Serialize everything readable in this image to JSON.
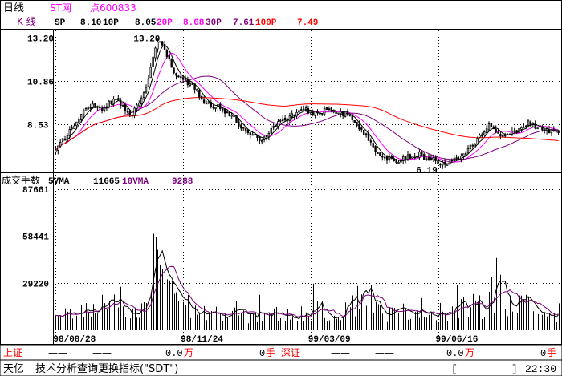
{
  "header": {
    "period_label": "日线",
    "name": "ST网",
    "code": "点600833"
  },
  "kline_legend": {
    "label": "K  线",
    "items": [
      {
        "label": "SP",
        "value": "8.10",
        "color": "#000000"
      },
      {
        "label": "10P",
        "value": "8.05",
        "color": "#000000"
      },
      {
        "label": "20P",
        "value": "8.08",
        "color": "#ff00ff"
      },
      {
        "label": "30P",
        "value": "7.61",
        "color": "#800080"
      },
      {
        "label": "100P",
        "value": "7.49",
        "color": "#ff0000"
      }
    ]
  },
  "volume_legend": {
    "label": "成交手数",
    "items": [
      {
        "label": "5VMA",
        "value": "11665",
        "color": "#000000"
      },
      {
        "label": "10VMA",
        "value": "9288",
        "color": "#800080"
      }
    ]
  },
  "status_bar": {
    "sh_label": "上证",
    "sh_index": "——",
    "sh_change": "——",
    "sh_volume": "0.0",
    "sh_volume_unit": "万",
    "sh_hands": "0",
    "sh_hands_unit": "手",
    "sz_label": "深证",
    "sz_index": "——",
    "sz_change": "——",
    "sz_volume": "0.0",
    "sz_volume_unit": "万",
    "sz_hands": "0",
    "sz_hands_unit": "手"
  },
  "command_bar": {
    "app_name": "天亿",
    "message": "技术分析查询更换指标(\"SDT\")",
    "bracket_open": "[",
    "bracket_close": "]",
    "clock": "22:30"
  },
  "colors": {
    "background": "#ffffff",
    "frame": "#000000",
    "grid": "#000000",
    "label_red": "#ff0000",
    "label_magenta": "#ff00ff",
    "label_purple": "#800080"
  },
  "chart_data": [
    {
      "type": "candlestick",
      "ylim": [
        6.0,
        13.6
      ],
      "y_ticks": [
        "13.20",
        "10.86",
        "8.53"
      ],
      "y_tick_values": [
        13.2,
        10.86,
        8.53
      ],
      "annotations": [
        {
          "text": "13.20",
          "bar": 44,
          "value": 13.2
        },
        {
          "text": "6.19",
          "bar": 166,
          "value": 6.19
        }
      ],
      "x_labels": [
        {
          "text": "98/08/28",
          "bar": 0
        },
        {
          "text": "98/11/24",
          "bar": 55
        },
        {
          "text": "99/03/09",
          "bar": 110
        },
        {
          "text": "99/06/16",
          "bar": 165
        }
      ],
      "close_keypoints": [
        [
          0,
          7.1
        ],
        [
          6,
          8.2
        ],
        [
          10,
          8.8
        ],
        [
          14,
          9.6
        ],
        [
          20,
          9.4
        ],
        [
          26,
          9.9
        ],
        [
          30,
          9.4
        ],
        [
          33,
          9.1
        ],
        [
          36,
          9.6
        ],
        [
          39,
          10.5
        ],
        [
          42,
          12.2
        ],
        [
          44,
          13.0
        ],
        [
          47,
          12.6
        ],
        [
          51,
          11.3
        ],
        [
          56,
          10.9
        ],
        [
          61,
          10.3
        ],
        [
          65,
          9.7
        ],
        [
          70,
          9.5
        ],
        [
          75,
          9.1
        ],
        [
          78,
          8.7
        ],
        [
          81,
          8.3
        ],
        [
          85,
          8.0
        ],
        [
          89,
          7.7
        ],
        [
          93,
          8.3
        ],
        [
          98,
          8.8
        ],
        [
          103,
          9.1
        ],
        [
          108,
          9.3
        ],
        [
          113,
          9.1
        ],
        [
          118,
          9.4
        ],
        [
          123,
          9.2
        ],
        [
          127,
          9.0
        ],
        [
          131,
          8.4
        ],
        [
          135,
          7.7
        ],
        [
          139,
          7.0
        ],
        [
          143,
          6.7
        ],
        [
          147,
          6.6
        ],
        [
          152,
          6.8
        ],
        [
          157,
          6.9
        ],
        [
          162,
          6.7
        ],
        [
          166,
          6.4
        ],
        [
          170,
          6.6
        ],
        [
          175,
          6.9
        ],
        [
          180,
          7.5
        ],
        [
          184,
          8.0
        ],
        [
          187,
          8.5
        ],
        [
          190,
          8.2
        ],
        [
          193,
          7.8
        ],
        [
          196,
          8.1
        ],
        [
          200,
          8.3
        ],
        [
          204,
          8.6
        ],
        [
          209,
          8.4
        ],
        [
          213,
          8.2
        ],
        [
          217,
          8.1
        ]
      ],
      "moving_averages": [
        {
          "name": "5P",
          "period": 5,
          "color": "#000000"
        },
        {
          "name": "10P",
          "period": 10,
          "color": "#ff00ff"
        },
        {
          "name": "30P",
          "period": 30,
          "color": "#800080"
        },
        {
          "name": "100P",
          "period": 100,
          "color": "#ff0000"
        }
      ]
    },
    {
      "type": "bar",
      "ylim": [
        0,
        87661
      ],
      "y_ticks": [
        "87661",
        "58441",
        "29220"
      ],
      "y_tick_values": [
        87661,
        58441,
        29220
      ],
      "volume_keypoints": [
        [
          0,
          6500
        ],
        [
          6,
          11000
        ],
        [
          12,
          13000
        ],
        [
          18,
          10000
        ],
        [
          24,
          16000
        ],
        [
          30,
          9000
        ],
        [
          36,
          10000
        ],
        [
          40,
          22000
        ],
        [
          43,
          46000
        ],
        [
          46,
          42000
        ],
        [
          50,
          28000
        ],
        [
          55,
          17000
        ],
        [
          60,
          12000
        ],
        [
          66,
          10000
        ],
        [
          72,
          9000
        ],
        [
          78,
          11000
        ],
        [
          84,
          8500
        ],
        [
          90,
          9000
        ],
        [
          96,
          10000
        ],
        [
          102,
          9000
        ],
        [
          108,
          10500
        ],
        [
          114,
          12000
        ],
        [
          120,
          10000
        ],
        [
          126,
          15000
        ],
        [
          132,
          21000
        ],
        [
          136,
          14000
        ],
        [
          142,
          9500
        ],
        [
          148,
          11000
        ],
        [
          154,
          15000
        ],
        [
          160,
          12500
        ],
        [
          166,
          9500
        ],
        [
          172,
          12000
        ],
        [
          178,
          15000
        ],
        [
          184,
          14000
        ],
        [
          190,
          26000
        ],
        [
          196,
          18000
        ],
        [
          202,
          14000
        ],
        [
          208,
          12000
        ],
        [
          213,
          10500
        ],
        [
          217,
          11000
        ]
      ],
      "spikes": [
        [
          20,
          22000
        ],
        [
          28,
          27000
        ],
        [
          42,
          60000
        ],
        [
          43,
          58000
        ],
        [
          44,
          50000
        ],
        [
          46,
          38000
        ],
        [
          78,
          18000
        ],
        [
          88,
          22000
        ],
        [
          111,
          29000
        ],
        [
          126,
          32000
        ],
        [
          133,
          45000
        ],
        [
          136,
          28000
        ],
        [
          166,
          17000
        ],
        [
          173,
          28000
        ],
        [
          188,
          33000
        ],
        [
          190,
          45000
        ],
        [
          193,
          30000
        ],
        [
          203,
          22000
        ]
      ],
      "moving_averages": [
        {
          "name": "5VMA",
          "period": 5,
          "color": "#000000"
        },
        {
          "name": "10VMA",
          "period": 10,
          "color": "#800080"
        }
      ]
    }
  ]
}
